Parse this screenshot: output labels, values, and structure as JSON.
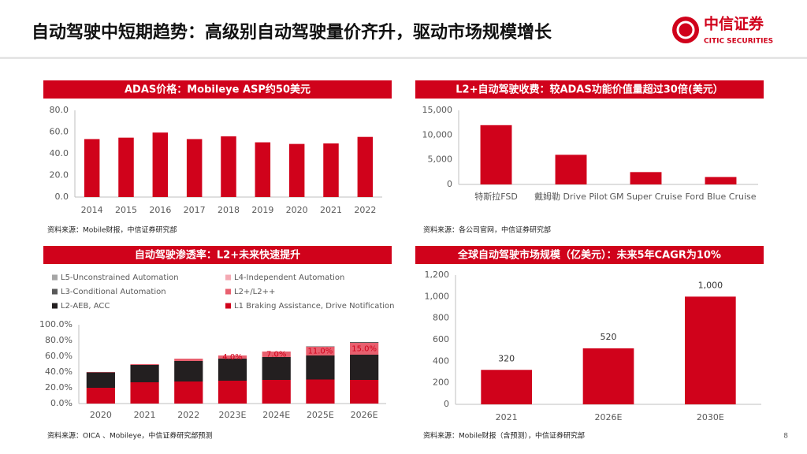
{
  "header": {
    "title": "自动驾驶中短期趋势：高级别自动驾驶量价齐升，驱动市场规模增长",
    "logo_name": "中信证券",
    "logo_sub": "CITIC SECURITIES"
  },
  "chart_data": [
    {
      "type": "bar",
      "title": "ADAS价格：Mobileye ASP约50美元",
      "categories": [
        "2014",
        "2015",
        "2016",
        "2017",
        "2018",
        "2019",
        "2020",
        "2021",
        "2022"
      ],
      "values": [
        53.5,
        54.8,
        59.5,
        53.5,
        56,
        50.5,
        49,
        49.5,
        55.5
      ],
      "color": "#d0021b",
      "ylim": [
        0,
        80
      ],
      "yticks": [
        {
          "value": 0,
          "label": "0.0"
        },
        {
          "value": 20,
          "label": "20.0"
        },
        {
          "value": 40,
          "label": "40.0"
        },
        {
          "value": 60,
          "label": "60.0"
        },
        {
          "value": 80,
          "label": "80.0"
        }
      ],
      "grid": false,
      "source": "资料来源：Mobile财报，中信证券研究部"
    },
    {
      "type": "bar",
      "title": "L2+自动驾驶收费：较ADAS功能价值量超过30倍(美元）",
      "categories": [
        "特斯拉FSD",
        "戴姆勒 Drive Pilot",
        "GM Super Cruise",
        "Ford Blue Cruise"
      ],
      "values": [
        12000,
        6000,
        2500,
        1500
      ],
      "color": "#d0021b",
      "ylim": [
        0,
        15000
      ],
      "yticks": [
        0,
        {
          "value": 5000,
          "label": "5,000"
        },
        {
          "value": 10000,
          "label": "10,000"
        },
        {
          "value": 15000,
          "label": "15,000"
        }
      ],
      "grid": false,
      "source": "资料来源：各公司官网，中信证券研究部"
    },
    {
      "type": "bar",
      "stacked": true,
      "title": "自动驾驶渗透率：L2+未来快速提升",
      "categories": [
        "2020",
        "2021",
        "2022",
        "2023E",
        "2024E",
        "2025E",
        "2026E"
      ],
      "series": [
        {
          "name": "L1 Braking Assistance, Drive Notification",
          "color": "#d0021b",
          "values": [
            20,
            27,
            28,
            29,
            30,
            30.5,
            30
          ]
        },
        {
          "name": "L2-AEB, ACC",
          "color": "#231f20",
          "values": [
            19.5,
            22,
            26,
            28,
            29,
            30.5,
            32
          ]
        },
        {
          "name": "L2+/L2++",
          "color": "#e8606f",
          "values": [
            0.5,
            1,
            3,
            4,
            7,
            11,
            15
          ],
          "value_labels": [
            null,
            null,
            null,
            "4.0%",
            "7.0%",
            "11.0%",
            "15.0%"
          ]
        },
        {
          "name": "L3-Conditional Automation",
          "color": "#595959",
          "values": [
            0,
            0,
            0,
            0,
            0,
            0.5,
            1
          ]
        },
        {
          "name": "L4-Independent Automation",
          "color": "#f4a9b3",
          "values": [
            0,
            0,
            0,
            0,
            0,
            0,
            0
          ]
        },
        {
          "name": "L5-Unconstrained Automation",
          "color": "#a6a6a6",
          "values": [
            0,
            0,
            0,
            0,
            0,
            0,
            0
          ]
        }
      ],
      "ylim": [
        0,
        100
      ],
      "yticks": [
        {
          "value": 0,
          "label": "0.0%"
        },
        {
          "value": 20,
          "label": "20.0%"
        },
        {
          "value": 40,
          "label": "40.0%"
        },
        {
          "value": 60,
          "label": "60.0%"
        },
        {
          "value": 80,
          "label": "80.0%"
        },
        {
          "value": 100,
          "label": "100.0%"
        }
      ],
      "grid": false,
      "source": "资料来源：OICA 、Mobileye，中信证券研究部预测"
    },
    {
      "type": "bar",
      "title": "全球自动驾驶市场规模（亿美元）：未来5年CAGR为10%",
      "categories": [
        "2021",
        "2026E",
        "2030E"
      ],
      "values": [
        320,
        520,
        1000
      ],
      "value_labels": [
        "320",
        "520",
        "1,000"
      ],
      "color": "#d0021b",
      "ylim": [
        0,
        1200
      ],
      "yticks": [
        0,
        200,
        400,
        600,
        800,
        {
          "value": 1000,
          "label": "1,000"
        },
        {
          "value": 1200,
          "label": "1,200"
        }
      ],
      "grid": false,
      "source": "资料来源：Mobile财报（含预测），中信证券研究部"
    }
  ],
  "page_number": "8"
}
